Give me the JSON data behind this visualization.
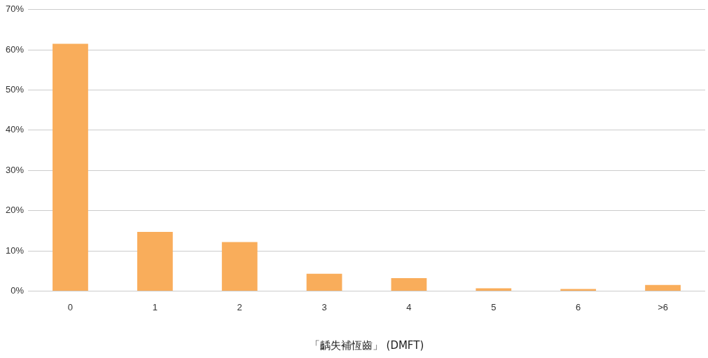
{
  "chart_data": {
    "type": "bar",
    "xlabel": "「齲失補恆齒」 (DMFT)",
    "categories": [
      "0",
      "1",
      "2",
      "3",
      "4",
      "5",
      "6",
      ">6"
    ],
    "values": [
      61.5,
      14.7,
      12.2,
      4.3,
      3.2,
      0.7,
      0.5,
      1.5
    ],
    "color": "#f9ad5b",
    "ylim": [
      0,
      70
    ],
    "yticks": [
      {
        "value": 0,
        "label": "0%"
      },
      {
        "value": 10,
        "label": "10%"
      },
      {
        "value": 20,
        "label": "20%"
      },
      {
        "value": 30,
        "label": "30%"
      },
      {
        "value": 40,
        "label": "40%"
      },
      {
        "value": 50,
        "label": "50%"
      },
      {
        "value": 60,
        "label": "60%"
      },
      {
        "value": 70,
        "label": "70%"
      }
    ],
    "grid": "y",
    "legend": false
  }
}
